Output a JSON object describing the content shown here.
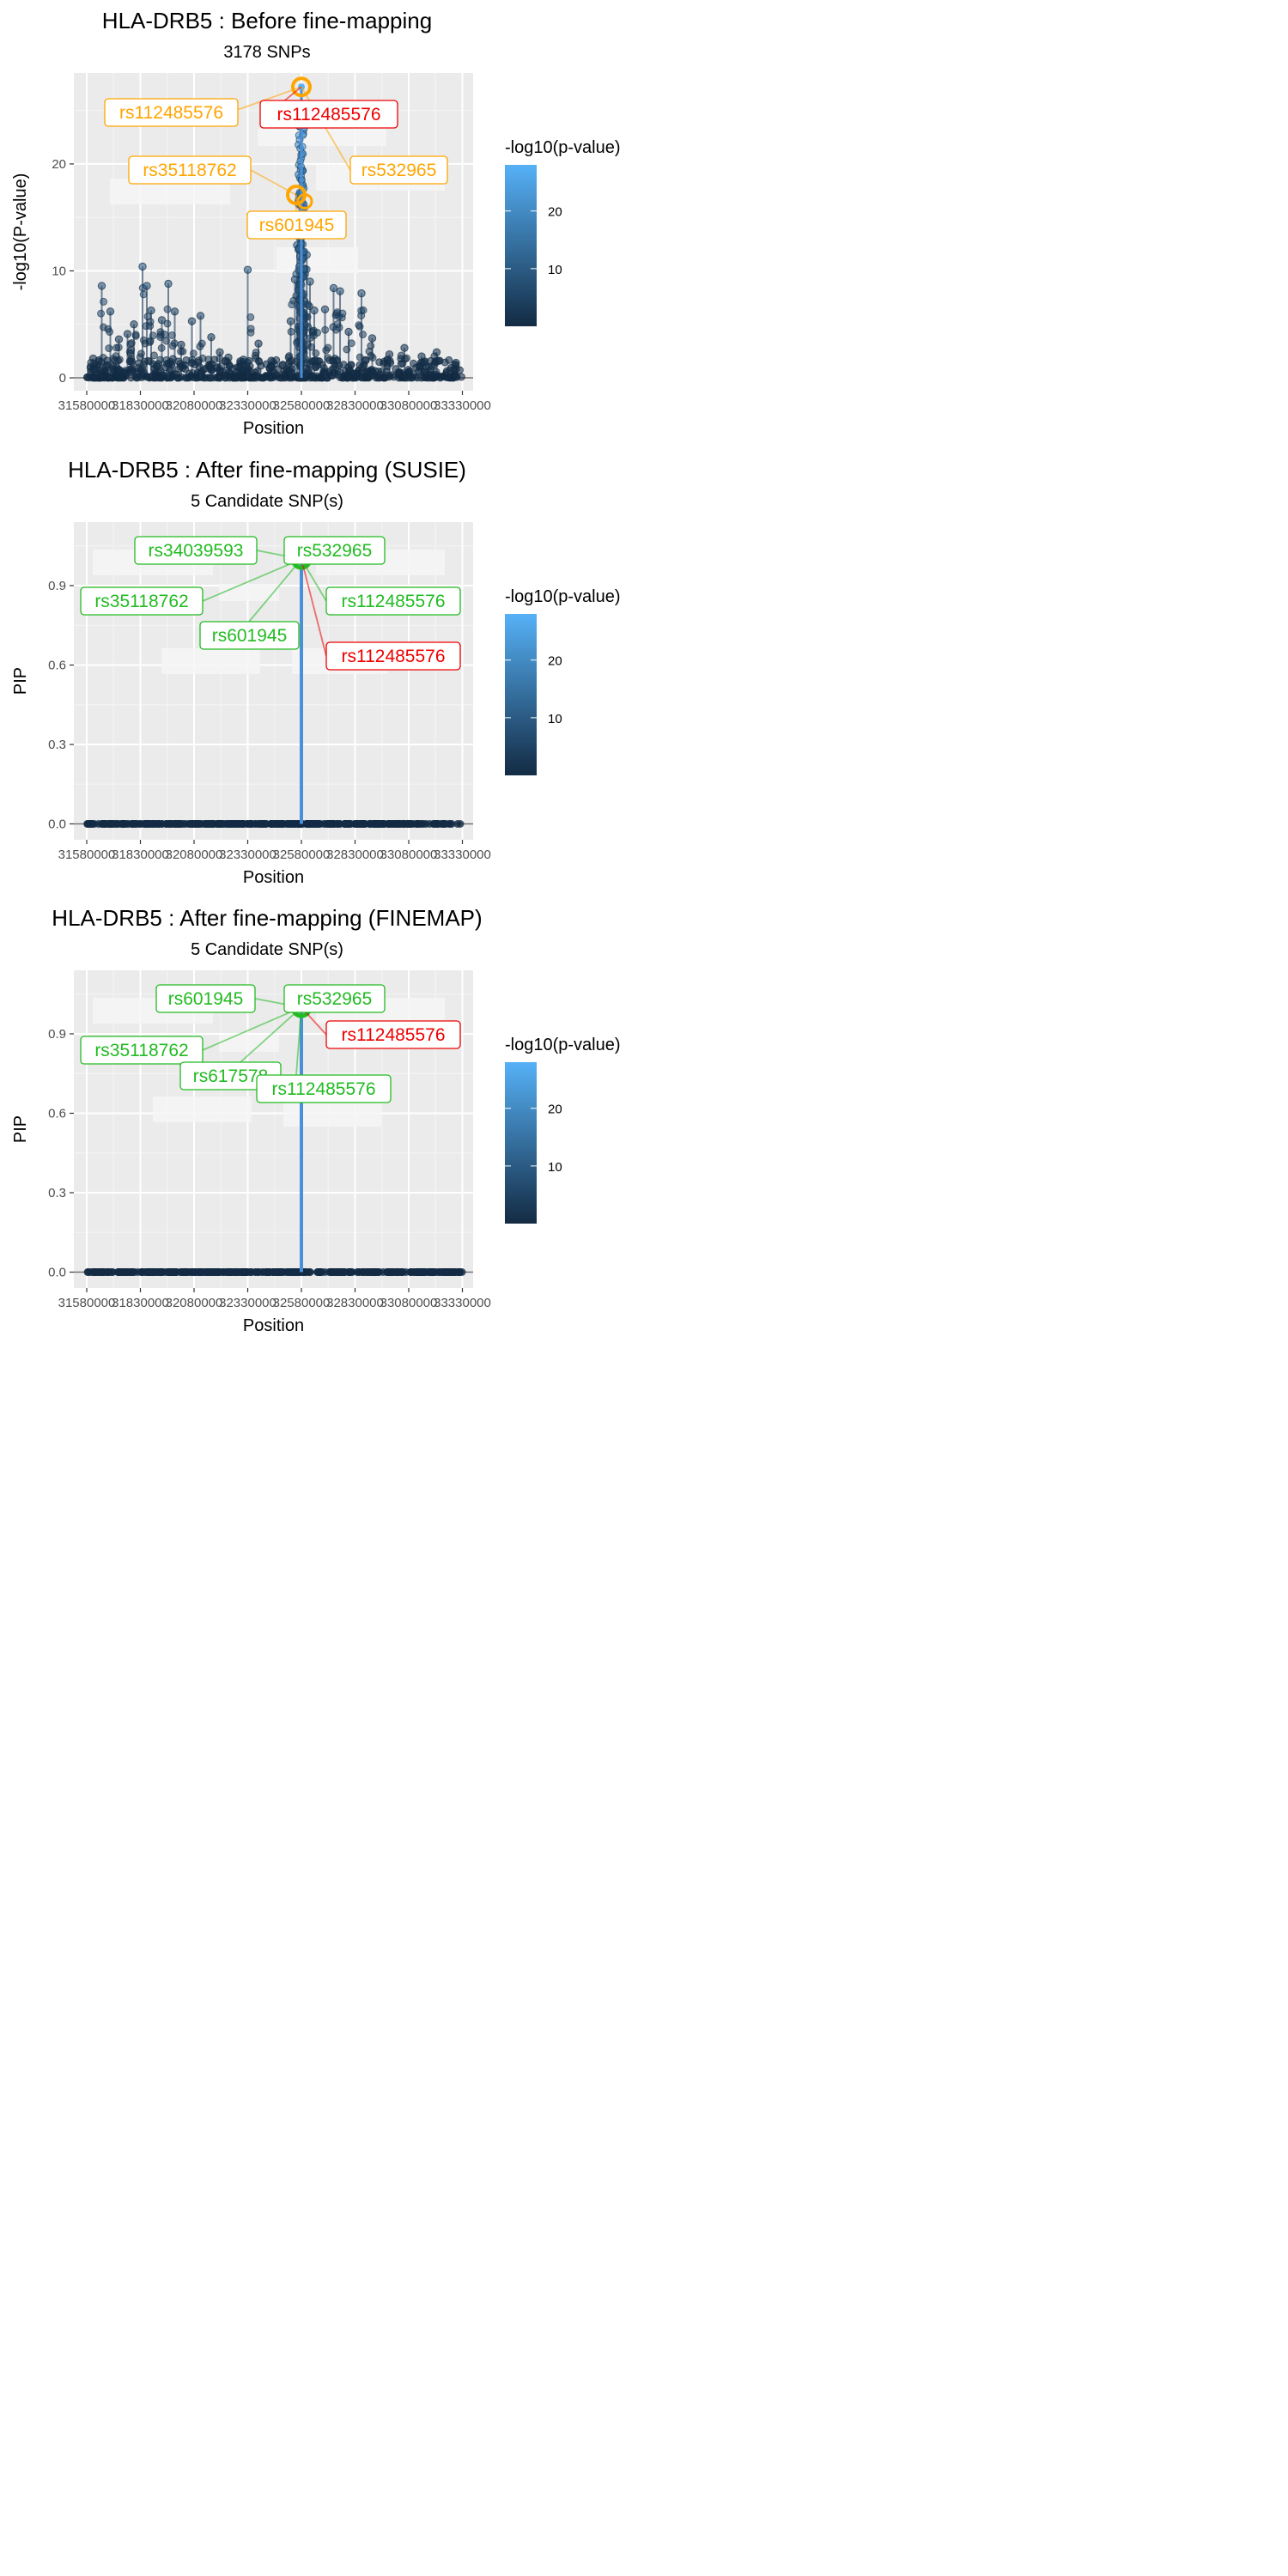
{
  "chart_data": [
    {
      "type": "scatter",
      "title": "HLA-DRB5 : Before fine-mapping",
      "subtitle": "3178 SNPs",
      "xlabel": "Position",
      "ylabel": "-log10(P-value)",
      "xlim": [
        31520000,
        33380000
      ],
      "ylim": [
        -1.2,
        28.5
      ],
      "x_ticks": [
        31580000,
        31830000,
        32080000,
        32330000,
        32580000,
        32830000,
        33080000,
        33330000
      ],
      "x_tick_labels": [
        "31580000",
        "31830000",
        "32080000",
        "32330000",
        "32580000",
        "32830000",
        "33080000",
        "33330000"
      ],
      "y_ticks": [
        0,
        10,
        20
      ],
      "y_tick_labels": [
        "0",
        "10",
        "20"
      ],
      "lead_x": 32580000,
      "lead_y": 27.2,
      "peaks": [
        [
          31610000,
          1.8
        ],
        [
          31650000,
          8.6
        ],
        [
          31690000,
          6.2
        ],
        [
          31730000,
          3.6
        ],
        [
          31770000,
          4.1
        ],
        [
          31800000,
          5.0
        ],
        [
          31840000,
          10.4
        ],
        [
          31860000,
          8.6
        ],
        [
          31880000,
          6.3
        ],
        [
          31930000,
          5.4
        ],
        [
          31960000,
          8.8
        ],
        [
          31990000,
          6.2
        ],
        [
          32020000,
          3.1
        ],
        [
          32070000,
          5.3
        ],
        [
          32110000,
          5.8
        ],
        [
          32160000,
          3.8
        ],
        [
          32200000,
          2.4
        ],
        [
          32240000,
          1.9
        ],
        [
          32310000,
          1.7
        ],
        [
          32330000,
          10.1
        ],
        [
          32380000,
          3.2
        ],
        [
          32440000,
          1.6
        ],
        [
          32530000,
          5.3
        ],
        [
          32550000,
          9.2
        ],
        [
          32560000,
          12.4
        ],
        [
          32570000,
          17.1
        ],
        [
          32590000,
          16.2
        ],
        [
          32605000,
          11.5
        ],
        [
          32620000,
          9.0
        ],
        [
          32640000,
          6.3
        ],
        [
          32690000,
          6.4
        ],
        [
          32730000,
          8.4
        ],
        [
          32760000,
          8.1
        ],
        [
          32800000,
          4.3
        ],
        [
          32860000,
          7.9
        ],
        [
          32910000,
          3.7
        ],
        [
          32990000,
          2.2
        ],
        [
          33060000,
          2.8
        ],
        [
          33140000,
          2.0
        ],
        [
          33210000,
          2.4
        ],
        [
          33300000,
          1.4
        ]
      ],
      "labels": [
        {
          "text": "rs112485576",
          "color": "#ffa500"
        },
        {
          "text": "rs112485576",
          "color": "#ee0000"
        },
        {
          "text": "rs35118762",
          "color": "#ffa500"
        },
        {
          "text": "rs532965",
          "color": "#ffa500"
        },
        {
          "text": "rs601945",
          "color": "#ffa500"
        }
      ],
      "legend": {
        "title": "-log10(p-value)",
        "ticks": [
          10,
          20
        ],
        "tick_labels": [
          "10",
          "20"
        ],
        "range": [
          0,
          28
        ],
        "low_color": "#132b43",
        "high_color": "#56b1f7"
      }
    },
    {
      "type": "scatter",
      "title": "HLA-DRB5 : After fine-mapping (SUSIE)",
      "subtitle": "5 Candidate SNP(s)",
      "xlabel": "Position",
      "ylabel": "PIP",
      "xlim": [
        31520000,
        33380000
      ],
      "ylim": [
        -0.06,
        1.14
      ],
      "x_ticks": [
        31580000,
        31830000,
        32080000,
        32330000,
        32580000,
        32830000,
        33080000,
        33330000
      ],
      "x_tick_labels": [
        "31580000",
        "31830000",
        "32080000",
        "32330000",
        "32580000",
        "32830000",
        "33080000",
        "33330000"
      ],
      "y_ticks": [
        0.0,
        0.3,
        0.6,
        0.9
      ],
      "y_tick_labels": [
        "0.0",
        "0.3",
        "0.6",
        "0.9"
      ],
      "lead_x": 32580000,
      "lead_y": 1.0,
      "labels": [
        {
          "text": "rs34039593",
          "color": "#22bb22"
        },
        {
          "text": "rs532965",
          "color": "#22bb22"
        },
        {
          "text": "rs35118762",
          "color": "#22bb22"
        },
        {
          "text": "rs112485576",
          "color": "#22bb22"
        },
        {
          "text": "rs601945",
          "color": "#22bb22"
        },
        {
          "text": "rs112485576",
          "color": "#ee0000"
        }
      ],
      "legend": {
        "title": "-log10(p-value)",
        "ticks": [
          10,
          20
        ],
        "tick_labels": [
          "10",
          "20"
        ],
        "range": [
          0,
          28
        ],
        "low_color": "#132b43",
        "high_color": "#56b1f7"
      }
    },
    {
      "type": "scatter",
      "title": "HLA-DRB5 : After fine-mapping (FINEMAP)",
      "subtitle": "5 Candidate SNP(s)",
      "xlabel": "Position",
      "ylabel": "PIP",
      "xlim": [
        31520000,
        33380000
      ],
      "ylim": [
        -0.06,
        1.14
      ],
      "x_ticks": [
        31580000,
        31830000,
        32080000,
        32330000,
        32580000,
        32830000,
        33080000,
        33330000
      ],
      "x_tick_labels": [
        "31580000",
        "31830000",
        "32080000",
        "32330000",
        "32580000",
        "32830000",
        "33080000",
        "33330000"
      ],
      "y_ticks": [
        0.0,
        0.3,
        0.6,
        0.9
      ],
      "y_tick_labels": [
        "0.0",
        "0.3",
        "0.6",
        "0.9"
      ],
      "lead_x": 32580000,
      "lead_y": 1.0,
      "labels": [
        {
          "text": "rs601945",
          "color": "#22bb22"
        },
        {
          "text": "rs532965",
          "color": "#22bb22"
        },
        {
          "text": "rs112485576",
          "color": "#ee0000"
        },
        {
          "text": "rs35118762",
          "color": "#22bb22"
        },
        {
          "text": "rs617578",
          "color": "#22bb22"
        },
        {
          "text": "rs112485576",
          "color": "#22bb22"
        }
      ],
      "legend": {
        "title": "-log10(p-value)",
        "ticks": [
          10,
          20
        ],
        "tick_labels": [
          "10",
          "20"
        ],
        "range": [
          0,
          28
        ],
        "low_color": "#132b43",
        "high_color": "#56b1f7"
      }
    }
  ]
}
